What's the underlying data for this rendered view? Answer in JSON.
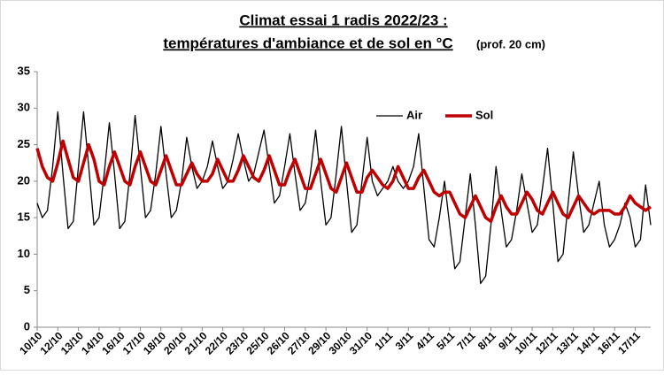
{
  "chart_data": {
    "type": "line",
    "title": "Climat essai 1 radis 2022/23 :",
    "subtitle": "températures d'ambiance et de sol en °C",
    "subtitle_note": "(prof. 20 cm)",
    "categories": [
      "10/10",
      null,
      null,
      null,
      "12/10",
      null,
      null,
      null,
      "13/10",
      null,
      null,
      null,
      "14/10",
      null,
      null,
      null,
      "16/10",
      null,
      null,
      null,
      "17/10",
      null,
      null,
      null,
      "18/10",
      null,
      null,
      null,
      "20/10",
      null,
      null,
      null,
      "21/10",
      null,
      null,
      null,
      "22/10",
      null,
      null,
      null,
      "23/10",
      null,
      null,
      null,
      "25/10",
      null,
      null,
      null,
      "26/10",
      null,
      null,
      null,
      "27/10",
      null,
      null,
      null,
      "29/10",
      null,
      null,
      null,
      "30/10",
      null,
      null,
      null,
      "31/10",
      null,
      null,
      null,
      "1/11",
      null,
      null,
      null,
      "3/11",
      null,
      null,
      null,
      "4/11",
      null,
      null,
      null,
      "5/11",
      null,
      null,
      null,
      "7/11",
      null,
      null,
      null,
      "8/11",
      null,
      null,
      null,
      "9/11",
      null,
      null,
      null,
      "10/11",
      null,
      null,
      null,
      "12/11",
      null,
      null,
      null,
      "13/11",
      null,
      null,
      null,
      "14/11",
      null,
      null,
      null,
      "16/11",
      null,
      null,
      null,
      "17/11",
      null,
      null,
      null
    ],
    "series": [
      {
        "name": "Air",
        "color": "#000000",
        "width": 1.3,
        "values": [
          17,
          15,
          16,
          22,
          29.5,
          21,
          13.5,
          14.5,
          22,
          29.5,
          22,
          14,
          15,
          21,
          28,
          21,
          13.5,
          14.5,
          21,
          29,
          22,
          15,
          16,
          21,
          27.5,
          21,
          15,
          16,
          20,
          26,
          22,
          19,
          20,
          22,
          25.5,
          22,
          19,
          20,
          23,
          26.5,
          23,
          20,
          21,
          24,
          27,
          22,
          17,
          18,
          22,
          26.5,
          21,
          16,
          17,
          21,
          27,
          20,
          14,
          15,
          21,
          27.5,
          20,
          13,
          14,
          20,
          26,
          20,
          18,
          19,
          20,
          22,
          20,
          19,
          20,
          22,
          26.5,
          19,
          12,
          11,
          15,
          20,
          14,
          8,
          9,
          15,
          21,
          14,
          6,
          7,
          14,
          22,
          16,
          11,
          12,
          16,
          21,
          17,
          13,
          14,
          19,
          24.5,
          17,
          9,
          10,
          17,
          24,
          18,
          13,
          14,
          17,
          20,
          14,
          11,
          12,
          14,
          17,
          15,
          11,
          12,
          19.5,
          14
        ]
      },
      {
        "name": "Sol",
        "color": "#c00000",
        "width": 3.5,
        "values": [
          24.5,
          22,
          20.5,
          20,
          22.5,
          25.5,
          23,
          20.5,
          20,
          22.5,
          25,
          23,
          20,
          19.5,
          22,
          24,
          22,
          20,
          19.5,
          22,
          24,
          22,
          20,
          19.5,
          21.5,
          23.5,
          21.5,
          19.5,
          19.5,
          21,
          22.5,
          21,
          20,
          20,
          21,
          23,
          21.5,
          20,
          20,
          21.5,
          23.5,
          22,
          20.5,
          20,
          21.5,
          23.5,
          21.5,
          19.5,
          19.5,
          21.5,
          23,
          21,
          19,
          19,
          21,
          23,
          21,
          19,
          18.5,
          20.5,
          22.5,
          20.5,
          18.5,
          18.5,
          20.5,
          21.5,
          20.5,
          19.5,
          19,
          20,
          22,
          20.5,
          19,
          19,
          20.5,
          21.5,
          20,
          18.5,
          18,
          18.5,
          18.5,
          17,
          15.5,
          15,
          16.5,
          18,
          16.5,
          15,
          14.5,
          16.5,
          18,
          16.5,
          15.5,
          15.5,
          17,
          18.5,
          17.5,
          16,
          15.5,
          17,
          18.5,
          17,
          15.5,
          15,
          16.5,
          18,
          17,
          16,
          15.5,
          16,
          16,
          16,
          15.5,
          15.5,
          16.5,
          18,
          17,
          16.5,
          16,
          16.5
        ]
      }
    ],
    "ylim": [
      0,
      35
    ],
    "yticks": [
      0,
      5,
      10,
      15,
      20,
      25,
      30,
      35
    ],
    "grid": false,
    "legend": "top"
  }
}
